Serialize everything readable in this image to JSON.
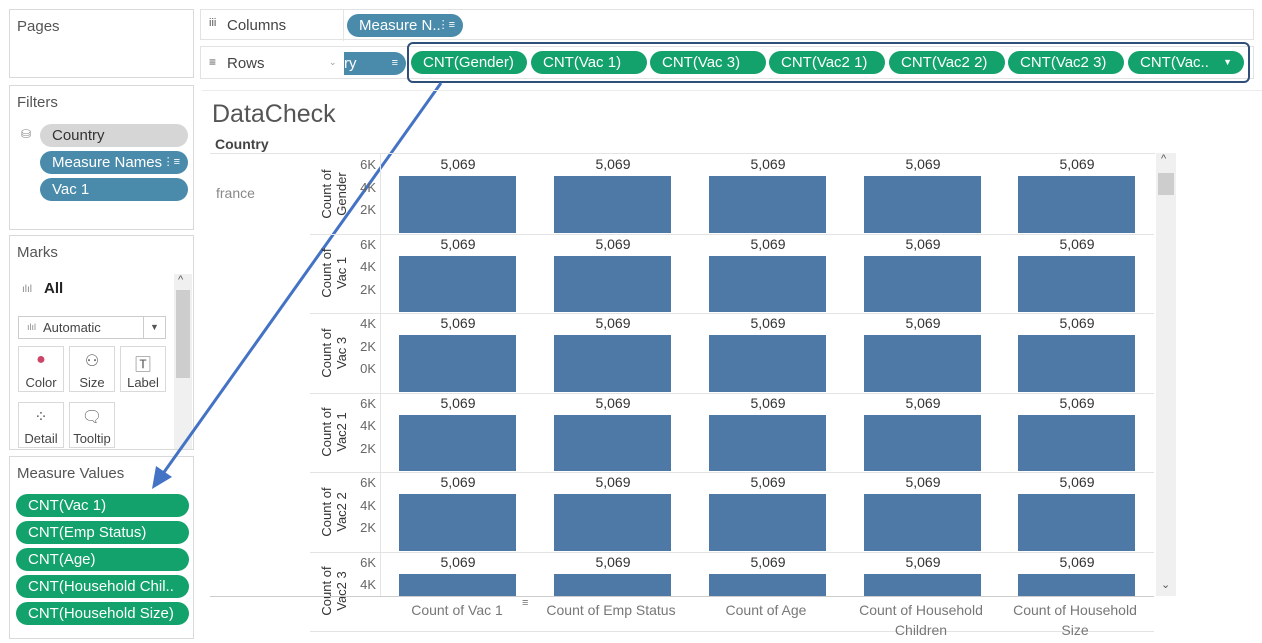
{
  "pages": {
    "title": "Pages"
  },
  "filters": {
    "title": "Filters",
    "items": [
      "Country",
      "Measure Names",
      "Vac 1"
    ],
    "sort_glyph": "⋮≡"
  },
  "marks": {
    "title": "Marks",
    "all_label": "All",
    "mark_type": "Automatic",
    "buttons": [
      "Color",
      "Size",
      "Label",
      "Detail",
      "Tooltip"
    ]
  },
  "measure_values": {
    "title": "Measure Values",
    "items": [
      "CNT(Vac 1)",
      "CNT(Emp Status)",
      "CNT(Age)",
      "CNT(Household Chil..",
      "CNT(Household Size)"
    ]
  },
  "columns_shelf": {
    "label": "Columns",
    "pill": "Measure N.."
  },
  "rows_shelf": {
    "label": "Rows",
    "partial_pill": "ry",
    "pills": [
      "CNT(Gender)",
      "CNT(Vac 1)",
      "CNT(Vac 3)",
      "CNT(Vac2 1)",
      "CNT(Vac2 2)",
      "CNT(Vac2 3)",
      "CNT(Vac.."
    ]
  },
  "view": {
    "title": "DataCheck",
    "country_header": "Country",
    "country_value": "france"
  },
  "colors": {
    "bar": "#4e79a7",
    "green_pill": "#13a26b",
    "blue_pill": "#4a8bab",
    "annotation": "#4472c4"
  },
  "chart_data": {
    "type": "bar",
    "categories": [
      "Count of Vac 1",
      "Count of Emp Status",
      "Count of Age",
      "Count of Household Children",
      "Count of Household Size"
    ],
    "category_lines": [
      [
        "Count of Vac 1"
      ],
      [
        "Count of Emp Status"
      ],
      [
        "Count of Age"
      ],
      [
        "Count of Household",
        "Children"
      ],
      [
        "Count of Household",
        "Size"
      ]
    ],
    "series": [
      {
        "name": "Count of Gender",
        "title_lines": [
          "Count of",
          "Gender"
        ],
        "values": [
          5069,
          5069,
          5069,
          5069,
          5069
        ],
        "ticks": [
          "6K",
          "4K",
          "2K"
        ],
        "ylim": [
          0,
          6000
        ]
      },
      {
        "name": "Count of Vac 1",
        "title_lines": [
          "Count of",
          "Vac 1"
        ],
        "values": [
          5069,
          5069,
          5069,
          5069,
          5069
        ],
        "ticks": [
          "6K",
          "4K",
          "2K"
        ],
        "ylim": [
          0,
          6000
        ]
      },
      {
        "name": "Count of Vac 3",
        "title_lines": [
          "Count of",
          "Vac 3"
        ],
        "values": [
          5069,
          5069,
          5069,
          5069,
          5069
        ],
        "ticks": [
          "4K",
          "2K",
          "0K"
        ],
        "ylim": [
          0,
          5500
        ]
      },
      {
        "name": "Count of Vac2 1",
        "title_lines": [
          "Count of",
          "Vac2 1"
        ],
        "values": [
          5069,
          5069,
          5069,
          5069,
          5069
        ],
        "ticks": [
          "6K",
          "4K",
          "2K"
        ],
        "ylim": [
          0,
          6000
        ]
      },
      {
        "name": "Count of Vac2 2",
        "title_lines": [
          "Count of",
          "Vac2 2"
        ],
        "values": [
          5069,
          5069,
          5069,
          5069,
          5069
        ],
        "ticks": [
          "6K",
          "4K",
          "2K"
        ],
        "ylim": [
          0,
          6000
        ]
      },
      {
        "name": "Count of Vac2 3",
        "title_lines": [
          "Count of",
          "Vac2 3"
        ],
        "values": [
          5069,
          5069,
          5069,
          5069,
          5069
        ],
        "ticks": [
          "6K",
          "4K"
        ],
        "ylim": [
          0,
          6000
        ]
      }
    ],
    "value_label": "5,069"
  }
}
